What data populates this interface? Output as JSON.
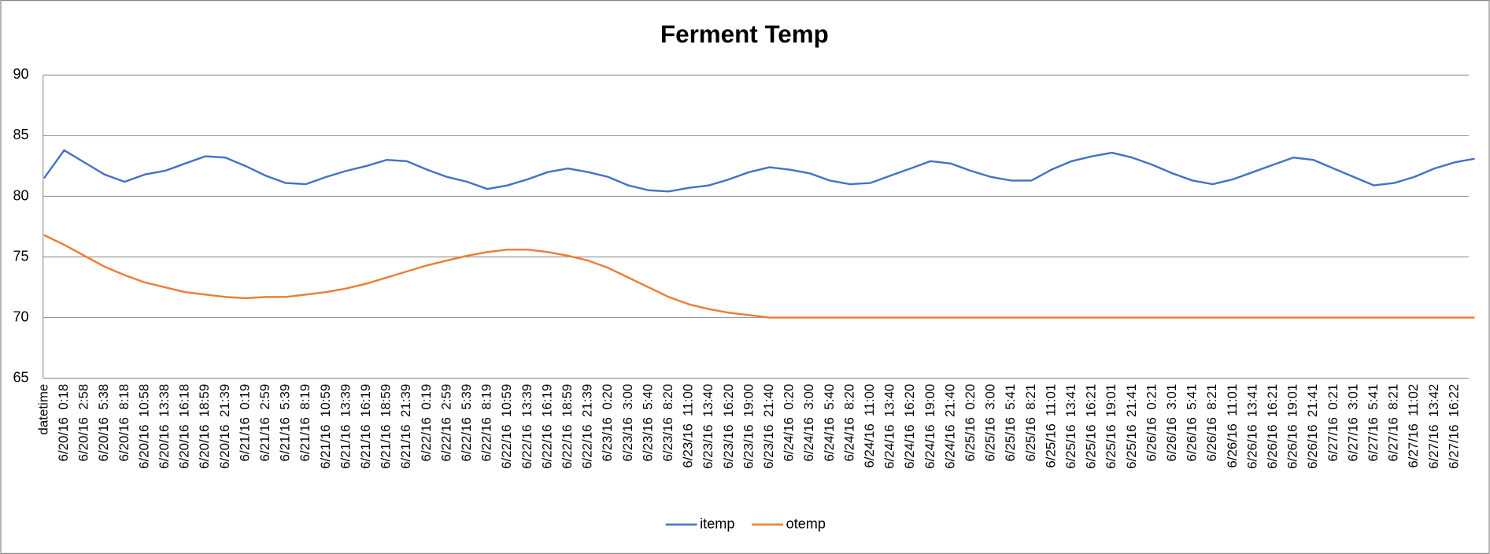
{
  "chart_data": {
    "type": "line",
    "title": "Ferment Temp",
    "categories": [
      "datetime",
      "6/20/16  0:18",
      "6/20/16  2:58",
      "6/20/16  5:38",
      "6/20/16  8:18",
      "6/20/16  10:58",
      "6/20/16  13:38",
      "6/20/16  16:18",
      "6/20/16  18:59",
      "6/20/16  21:39",
      "6/21/16  0:19",
      "6/21/16  2:59",
      "6/21/16  5:39",
      "6/21/16  8:19",
      "6/21/16  10:59",
      "6/21/16  13:39",
      "6/21/16  16:19",
      "6/21/16  18:59",
      "6/21/16  21:39",
      "6/22/16  0:19",
      "6/22/16  2:59",
      "6/22/16  5:39",
      "6/22/16  8:19",
      "6/22/16  10:59",
      "6/22/16  13:39",
      "6/22/16  16:19",
      "6/22/16  18:59",
      "6/22/16  21:39",
      "6/23/16  0:20",
      "6/23/16  3:00",
      "6/23/16  5:40",
      "6/23/16  8:20",
      "6/23/16  11:00",
      "6/23/16  13:40",
      "6/23/16  16:20",
      "6/23/16  19:00",
      "6/23/16  21:40",
      "6/24/16  0:20",
      "6/24/16  3:00",
      "6/24/16  5:40",
      "6/24/16  8:20",
      "6/24/16  11:00",
      "6/24/16  13:40",
      "6/24/16  16:20",
      "6/24/16  19:00",
      "6/24/16  21:40",
      "6/25/16  0:20",
      "6/25/16  3:00",
      "6/25/16  5:41",
      "6/25/16  8:21",
      "6/25/16  11:01",
      "6/25/16  13:41",
      "6/25/16  16:21",
      "6/25/16  19:01",
      "6/25/16  21:41",
      "6/26/16  0:21",
      "6/26/16  3:01",
      "6/26/16  5:41",
      "6/26/16  8:21",
      "6/26/16  11:01",
      "6/26/16  13:41",
      "6/26/16  16:21",
      "6/26/16  19:01",
      "6/26/16  21:41",
      "6/27/16  0:21",
      "6/27/16  3:01",
      "6/27/16  5:41",
      "6/27/16  8:21",
      "6/27/16  11:02",
      "6/27/16  13:42",
      "6/27/16  16:22",
      null
    ],
    "series": [
      {
        "name": "itemp",
        "color": "#4472c4",
        "values": [
          81.5,
          83.8,
          82.8,
          81.8,
          81.2,
          81.8,
          82.1,
          82.7,
          83.3,
          83.2,
          82.5,
          81.7,
          81.1,
          81.0,
          81.6,
          82.1,
          82.5,
          83.0,
          82.9,
          82.2,
          81.6,
          81.2,
          80.6,
          80.9,
          81.4,
          82.0,
          82.3,
          82.0,
          81.6,
          80.9,
          80.5,
          80.4,
          80.7,
          80.9,
          81.4,
          82.0,
          82.4,
          82.2,
          81.9,
          81.3,
          81.0,
          81.1,
          81.7,
          82.3,
          82.9,
          82.7,
          82.1,
          81.6,
          81.3,
          81.3,
          82.2,
          82.9,
          83.3,
          83.6,
          83.2,
          82.6,
          81.9,
          81.3,
          81.0,
          81.4,
          82.0,
          82.6,
          83.2,
          83.0,
          82.3,
          81.6,
          80.9,
          81.1,
          81.6,
          82.3,
          82.8,
          83.1
        ]
      },
      {
        "name": "otemp",
        "color": "#ed7d31",
        "values": [
          76.8,
          76.0,
          75.1,
          74.2,
          73.5,
          72.9,
          72.5,
          72.1,
          71.9,
          71.7,
          71.6,
          71.7,
          71.7,
          71.9,
          72.1,
          72.4,
          72.8,
          73.3,
          73.8,
          74.3,
          74.7,
          75.1,
          75.4,
          75.6,
          75.6,
          75.4,
          75.1,
          74.7,
          74.1,
          73.3,
          72.5,
          71.7,
          71.1,
          70.7,
          70.4,
          70.2,
          70.0,
          70.0,
          70.0,
          70.0,
          70.0,
          70.0,
          70.0,
          70.0,
          70.0,
          70.0,
          70.0,
          70.0,
          70.0,
          70.0,
          70.0,
          70.0,
          70.0,
          70.0,
          70.0,
          70.0,
          70.0,
          70.0,
          70.0,
          70.0,
          70.0,
          70.0,
          70.0,
          70.0,
          70.0,
          70.0,
          70.0,
          70.0,
          70.0,
          70.0,
          70.0,
          70.0
        ]
      }
    ],
    "ylim": [
      65,
      90
    ],
    "yticks": [
      65,
      70,
      75,
      80,
      85,
      90
    ],
    "grid": true,
    "legend": "bottom"
  }
}
